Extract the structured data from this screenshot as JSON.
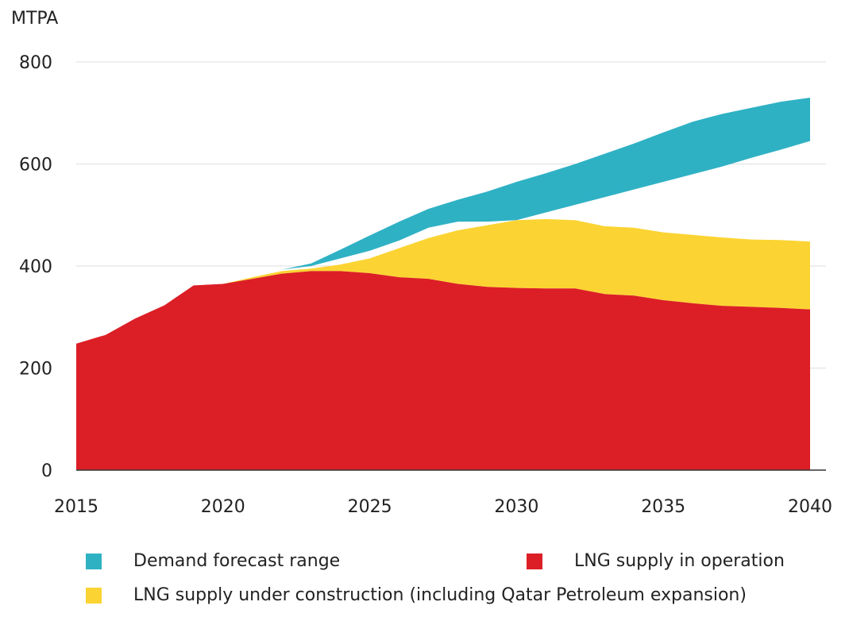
{
  "chart_data": {
    "type": "area",
    "ylabel": "MTPA",
    "xlim": [
      2015,
      2040
    ],
    "ylim": [
      0,
      800
    ],
    "yticks": [
      0,
      200,
      400,
      600,
      800
    ],
    "xticks": [
      2015,
      2020,
      2025,
      2030,
      2035,
      2040
    ],
    "grid": true,
    "x": [
      2015,
      2016,
      2017,
      2018,
      2019,
      2020,
      2021,
      2022,
      2023,
      2024,
      2025,
      2026,
      2027,
      2028,
      2029,
      2030,
      2031,
      2032,
      2033,
      2034,
      2035,
      2036,
      2037,
      2038,
      2039,
      2040
    ],
    "series": [
      {
        "name": "LNG supply in operation",
        "color": "#dc1f26",
        "values": [
          248,
          265,
          297,
          323,
          362,
          365,
          375,
          385,
          390,
          390,
          386,
          378,
          375,
          365,
          359,
          357,
          356,
          356,
          345,
          342,
          333,
          327,
          322,
          320,
          318,
          315
        ]
      },
      {
        "name": "LNG supply under construction (including Qatar Petroleum expansion)",
        "color": "#fbd433",
        "values": [
          248,
          265,
          297,
          323,
          362,
          365,
          378,
          390,
          395,
          403,
          415,
          435,
          455,
          470,
          480,
          490,
          492,
          490,
          478,
          475,
          466,
          461,
          456,
          452,
          451,
          448
        ]
      },
      {
        "name": "Demand forecast range",
        "color": "#2fb1c4",
        "lower": [
          248,
          265,
          297,
          323,
          362,
          365,
          380,
          393,
          400,
          415,
          430,
          450,
          475,
          487,
          487,
          490,
          505,
          520,
          535,
          550,
          565,
          580,
          595,
          612,
          628,
          645
        ],
        "upper": [
          248,
          265,
          297,
          323,
          362,
          365,
          380,
          393,
          405,
          432,
          460,
          487,
          512,
          530,
          546,
          565,
          582,
          600,
          620,
          640,
          662,
          683,
          698,
          710,
          722,
          730
        ]
      }
    ],
    "overlap_color": "#0b8a3c",
    "legend": [
      {
        "label": "Demand forecast range",
        "color": "#2fb1c4"
      },
      {
        "label": "LNG supply in operation",
        "color": "#dc1f26"
      },
      {
        "label": "LNG supply under construction (including Qatar Petroleum expansion)",
        "color": "#fbd433"
      }
    ]
  }
}
